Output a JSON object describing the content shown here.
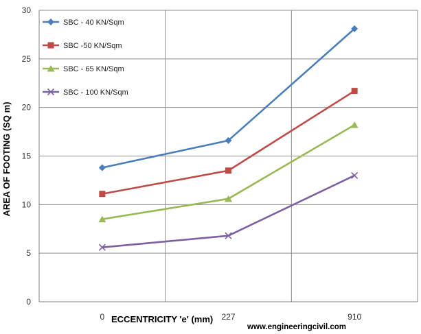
{
  "chart_data": {
    "type": "line",
    "title": "",
    "xlabel": "ECCENTRICITY 'e' (mm)",
    "ylabel": "AREA OF FOOTING (SQ m)",
    "categories": [
      "0",
      "227",
      "910"
    ],
    "ylim": [
      0,
      30
    ],
    "yticks": [
      0,
      5,
      10,
      15,
      20,
      25,
      30
    ],
    "grid": true,
    "legend_position": "top-left",
    "series": [
      {
        "name": "SBC - 40 KN/Sqm",
        "values": [
          13.8,
          16.6,
          28.1
        ],
        "color": "#4A7EBB",
        "marker": "diamond"
      },
      {
        "name": "SBC -50 KN/Sqm",
        "values": [
          11.1,
          13.5,
          21.7
        ],
        "color": "#BE4B48",
        "marker": "square"
      },
      {
        "name": "SBC - 65 KN/Sqm",
        "values": [
          8.5,
          10.6,
          18.2
        ],
        "color": "#98B954",
        "marker": "triangle"
      },
      {
        "name": "SBC - 100 KN/Sqm",
        "values": [
          5.6,
          6.8,
          13.0
        ],
        "color": "#7D60A0",
        "marker": "x"
      }
    ]
  },
  "watermark": "www.engineeringcivil.com"
}
